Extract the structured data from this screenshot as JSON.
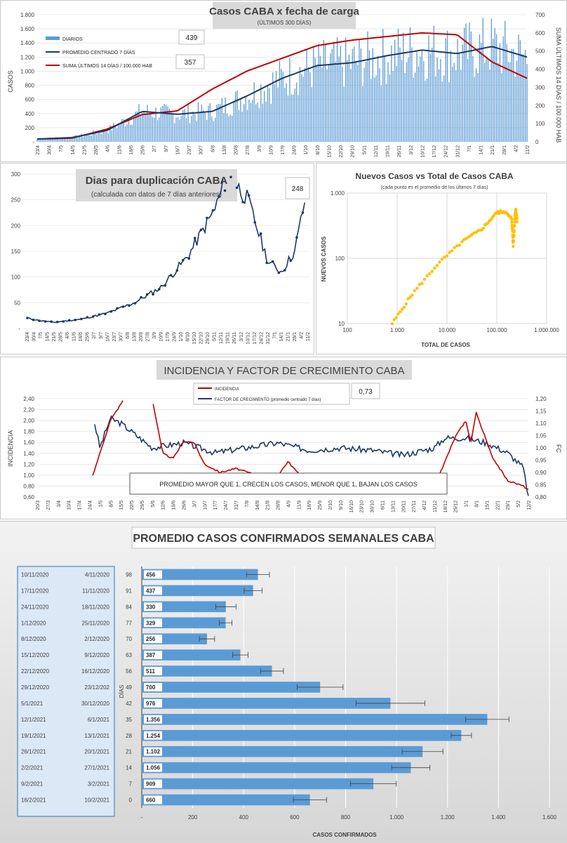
{
  "colors": {
    "bar": "#5b9bd5",
    "navy": "#1f3864",
    "red": "#c00000",
    "gold": "#ffc000",
    "hbar": "#5b9bd5",
    "titlebox": "#d9d9d9"
  },
  "chart_data": [
    {
      "type": "bar+line",
      "title": "Casos  CABA x fecha  de carga",
      "subtitle": "(ÚLTIMOS 300 DÍAS)",
      "ylabel": "CASOS",
      "y2label": "SUMA ÚLTIMOS 14 DÍAS / 100.000 HAB",
      "yticks": [
        "-",
        "200",
        "400",
        "600",
        "800",
        "1.000",
        "1.200",
        "1.400",
        "1.600",
        "1.800"
      ],
      "y2ticks": [
        "0",
        "100",
        "200",
        "300",
        "400",
        "500",
        "600",
        "700"
      ],
      "ylim": [
        0,
        1800
      ],
      "y2lim": [
        0,
        700
      ],
      "xticks": [
        "23/4",
        "30/4",
        "7/5",
        "14/5",
        "21/5",
        "28/5",
        "4/6",
        "11/6",
        "18/6",
        "25/6",
        "2/7",
        "9/7",
        "16/7",
        "23/7",
        "30/7",
        "6/8",
        "13/8",
        "20/8",
        "27/8",
        "3/9",
        "10/9",
        "17/9",
        "24/9",
        "1/10",
        "8/10",
        "15/10",
        "22/10",
        "29/10",
        "5/11",
        "12/11",
        "19/11",
        "26/11",
        "3/12",
        "10/12",
        "17/12",
        "24/12",
        "31/12",
        "7/1",
        "14/1",
        "21/1",
        "28/1",
        "4/2",
        "11/2"
      ],
      "legend": [
        "DIARIOS",
        "PROMEDIO CENTRADO 7 DÍAS",
        "SUMA ÚLTIMOS 14 DÍAS / 100.000 HAB"
      ],
      "callouts": [
        "439",
        "357"
      ],
      "series": [
        {
          "name": "PROMEDIO CENTRADO 7 DÍAS",
          "x": [
            0,
            3,
            6,
            9,
            12,
            15,
            18,
            21,
            24,
            27,
            30,
            33,
            36,
            39,
            42
          ],
          "values": [
            40,
            60,
            160,
            430,
            390,
            430,
            650,
            900,
            1080,
            1120,
            1220,
            1300,
            1250,
            1350,
            1200
          ]
        },
        {
          "name": "SUMA ÚLTIMOS 14 DÍAS / 100.000 HAB",
          "x": [
            0,
            3,
            6,
            9,
            12,
            15,
            18,
            21,
            24,
            27,
            30,
            33,
            36,
            39,
            42
          ],
          "values": [
            15,
            20,
            70,
            150,
            170,
            290,
            390,
            460,
            530,
            560,
            580,
            600,
            590,
            440,
            350
          ]
        }
      ]
    },
    {
      "type": "line",
      "title": "Dias para duplicación CABA",
      "subtitle": "(calculada con datos de 7 días anteriores)",
      "callout": "248",
      "yticks": [
        "-",
        "50",
        "100",
        "150",
        "200",
        "250",
        "300"
      ],
      "ylim": [
        0,
        300
      ],
      "xticks": [
        "23/4",
        "30/4",
        "7/5",
        "14/5",
        "21/5",
        "28/5",
        "4/6",
        "11/6",
        "18/6",
        "25/6",
        "2/7",
        "9/7",
        "16/7",
        "23/7",
        "30/7",
        "6/8",
        "13/8",
        "20/8",
        "27/8",
        "3/9",
        "10/9",
        "17/9",
        "24/9",
        "1/10",
        "8/10",
        "15/10",
        "22/10",
        "29/10",
        "5/11",
        "12/11",
        "19/11",
        "26/11",
        "3/12",
        "10/12",
        "17/12",
        "24/12",
        "31/12",
        "7/1",
        "14/1",
        "21/1",
        "28/1",
        "4/2",
        "11/2"
      ]
    },
    {
      "type": "scatter",
      "title": "Nuevos Casos vs Total de Casos CABA",
      "subtitle": "(cada punto es el promedio de los últimos 7 días)",
      "xlabel": "TOTAL DE CASOS",
      "ylabel": "NUEVOS CASOS",
      "xscale": "log",
      "yscale": "log",
      "xticks": [
        "100",
        "1.000",
        "10.000",
        "100.000",
        "1.000.000"
      ],
      "yticks": [
        "10",
        "100",
        "1.000"
      ]
    },
    {
      "type": "line",
      "title": "INCIDENCIA Y FACTOR DE CRECIMIENTO CABA",
      "ylabel": "INCIDENCIA",
      "y2label": "FC",
      "callout": "0,73",
      "annotation": "PROMEDIO MAYOR QUE 1, CRECEN LOS CASOS, MENOR QUE 1, BAJAN LOS CASOS",
      "legend": [
        "INCIDENCIA",
        "FACTOR DE CRECIMIENTO (promedio centrado 7 días)"
      ],
      "yticks": [
        "0,60",
        "0,80",
        "1,00",
        "1,20",
        "1,40",
        "1,60",
        "1,80",
        "2,00",
        "2,20",
        "2,40"
      ],
      "y2ticks": [
        "0,80",
        "0,85",
        "0,90",
        "0,95",
        "1,00",
        "1,05",
        "1,10",
        "1,15",
        "1,20"
      ],
      "xticks": [
        "20/3",
        "27/3",
        "3/4",
        "10/4",
        "17/4",
        "24/4",
        "1/5",
        "8/5",
        "15/5",
        "22/5",
        "29/5",
        "5/6",
        "12/6",
        "19/6",
        "26/6",
        "3/7",
        "10/7",
        "17/7",
        "24/7",
        "31/7",
        "7/8",
        "14/8",
        "21/8",
        "28/8",
        "4/9",
        "11/9",
        "18/9",
        "25/9",
        "2/10",
        "9/10",
        "16/10",
        "23/10",
        "30/10",
        "6/11",
        "13/11",
        "20/11",
        "27/11",
        "4/12",
        "11/12",
        "18/12",
        "25/12",
        "1/1",
        "8/1",
        "15/1",
        "22/1",
        "29/1",
        "5/2",
        "12/2"
      ]
    },
    {
      "type": "bar",
      "orientation": "horizontal",
      "title": "PROMEDIO CASOS CONFIRMADOS SEMANALES CABA",
      "xlabel": "CASOS CONFIRMADOS",
      "ylabel": "DÍAS",
      "xticks": [
        "-",
        "200",
        "400",
        "600",
        "800",
        "1.000",
        "1.200",
        "1.400",
        "1.600"
      ],
      "xlim": [
        0,
        1600
      ],
      "rows": [
        {
          "end": "10/11/2020",
          "start": "4/11/2020",
          "days": "98",
          "value": 456,
          "label": "456",
          "err": 45
        },
        {
          "end": "17/11/2020",
          "start": "11/11/2020",
          "days": "91",
          "value": 437,
          "label": "437",
          "err": 35
        },
        {
          "end": "24/11/2020",
          "start": "18/11/2020",
          "days": "84",
          "value": 330,
          "label": "330",
          "err": 40
        },
        {
          "end": "1/12/2020",
          "start": "25/11/2020",
          "days": "77",
          "value": 329,
          "label": "329",
          "err": 25
        },
        {
          "end": "8/12/2020",
          "start": "2/12/2020",
          "days": "70",
          "value": 256,
          "label": "256",
          "err": 30
        },
        {
          "end": "15/12/2020",
          "start": "9/12/2020",
          "days": "63",
          "value": 387,
          "label": "387",
          "err": 30
        },
        {
          "end": "22/12/2020",
          "start": "16/12/2020",
          "days": "56",
          "value": 511,
          "label": "511",
          "err": 45
        },
        {
          "end": "29/12/2020",
          "start": "23/12/202",
          "days": "49",
          "value": 700,
          "label": "700",
          "err": 90
        },
        {
          "end": "5/1/2021",
          "start": "30/12/2020",
          "days": "42",
          "value": 976,
          "label": "976",
          "err": 135
        },
        {
          "end": "12/1/2021",
          "start": "6/1/2021",
          "days": "35",
          "value": 1356,
          "label": "1.356",
          "err": 85
        },
        {
          "end": "19/1/2021",
          "start": "13/1/2021",
          "days": "28",
          "value": 1254,
          "label": "1.254",
          "err": 40
        },
        {
          "end": "26/1/2021",
          "start": "20/1/2021",
          "days": "21",
          "value": 1102,
          "label": "1.102",
          "err": 80
        },
        {
          "end": "2/2/2021",
          "start": "27/1/2021",
          "days": "14",
          "value": 1056,
          "label": "1.056",
          "err": 75
        },
        {
          "end": "9/2/2021",
          "start": "3/2/2021",
          "days": "7",
          "value": 909,
          "label": "909",
          "err": 90
        },
        {
          "end": "16/2/2021",
          "start": "10/2/2021",
          "days": "0",
          "value": 660,
          "label": "660",
          "err": 65
        }
      ]
    }
  ]
}
